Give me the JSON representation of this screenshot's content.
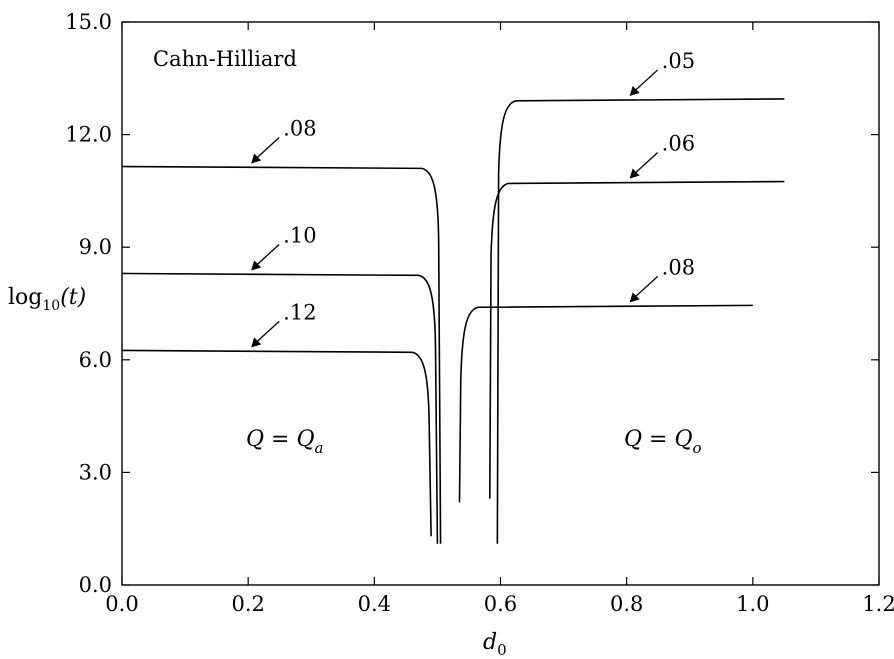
{
  "chart_data": {
    "type": "line",
    "title": "Cahn-Hilliard",
    "xlabel_main": "d",
    "xlabel_sub": "0",
    "ylabel_main": "log",
    "ylabel_sub": "10",
    "ylabel_tail": "(t)",
    "xlim": [
      0.0,
      1.2
    ],
    "ylim": [
      0.0,
      15.0
    ],
    "xticks": [
      0.0,
      0.2,
      0.4,
      0.6,
      0.8,
      1.0,
      1.2
    ],
    "xtick_labels": [
      "0.0",
      "0.2",
      "0.4",
      "0.6",
      "0.8",
      "1.0",
      "1.2"
    ],
    "yticks": [
      0.0,
      3.0,
      6.0,
      9.0,
      12.0,
      15.0
    ],
    "ytick_labels": [
      "0.0",
      "3.0",
      "6.0",
      "9.0",
      "12.0",
      "15.0"
    ],
    "grid": false,
    "regions": [
      {
        "label_main": "Q = Q",
        "label_sub": "a",
        "x": 0.25,
        "y": 3.9
      },
      {
        "label_main": "Q = Q",
        "label_sub": "o",
        "x": 0.86,
        "y": 3.9
      }
    ],
    "series": [
      {
        "name": ".08",
        "group": "Q_a",
        "plateau": 11.15,
        "x_edge": 0.505,
        "y_min": 1.1,
        "x_start": 0.0,
        "x_end": 0.505,
        "label_at": [
          0.2,
          11.15
        ]
      },
      {
        "name": ".10",
        "group": "Q_a",
        "plateau": 8.3,
        "x_edge": 0.5,
        "y_min": 1.1,
        "x_start": 0.0,
        "x_end": 0.5,
        "label_at": [
          0.2,
          8.3
        ]
      },
      {
        "name": ".12",
        "group": "Q_a",
        "plateau": 6.25,
        "x_edge": 0.49,
        "y_min": 1.3,
        "x_start": 0.0,
        "x_end": 0.49,
        "label_at": [
          0.2,
          6.25
        ]
      },
      {
        "name": ".05",
        "group": "Q_o",
        "plateau": 12.95,
        "x_edge": 0.595,
        "y_min": 1.1,
        "x_start": 0.595,
        "x_end": 1.05,
        "label_at": [
          0.8,
          12.95
        ]
      },
      {
        "name": ".06",
        "group": "Q_o",
        "plateau": 10.75,
        "x_edge": 0.583,
        "y_min": 2.3,
        "x_start": 0.583,
        "x_end": 1.05,
        "label_at": [
          0.8,
          10.75
        ]
      },
      {
        "name": ".08",
        "group": "Q_o",
        "plateau": 7.45,
        "x_edge": 0.535,
        "y_min": 2.2,
        "x_start": 0.535,
        "x_end": 1.0,
        "label_at": [
          0.8,
          7.45
        ]
      }
    ]
  }
}
